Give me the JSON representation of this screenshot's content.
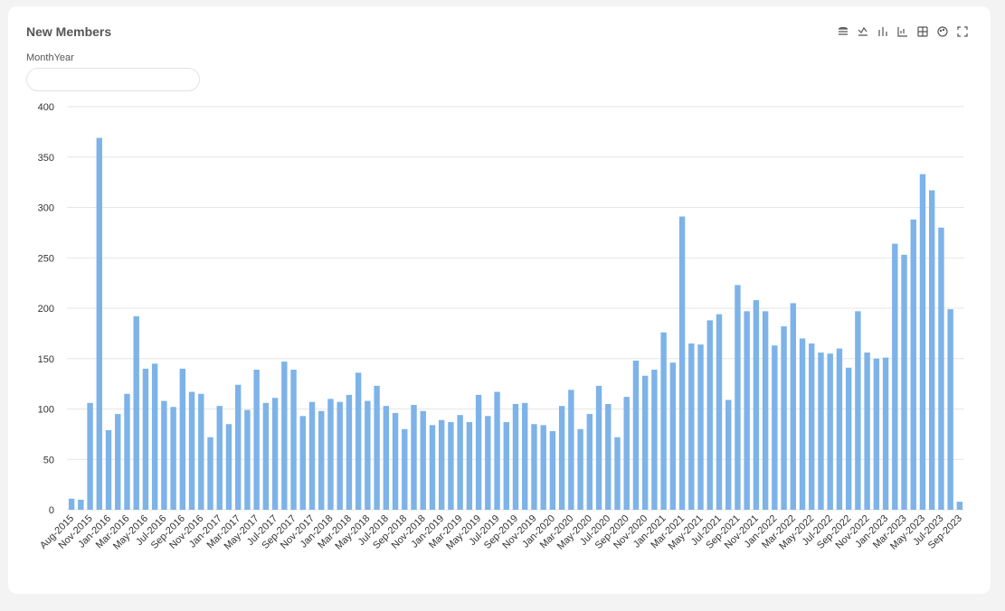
{
  "filter_label": "MonthYear",
  "chart_data": {
    "type": "bar",
    "title": "New Members",
    "color": "#7db3e8",
    "grid": true,
    "ylim": [
      0,
      400
    ],
    "yticks": [
      0,
      50,
      100,
      150,
      200,
      250,
      300,
      350,
      400
    ],
    "categories": [
      "Aug-2015",
      null,
      "Nov-2015",
      null,
      "Jan-2016",
      null,
      "Mar-2016",
      null,
      "May-2016",
      null,
      "Jul-2016",
      null,
      "Sep-2016",
      null,
      "Nov-2016",
      null,
      "Jan-2017",
      null,
      "Mar-2017",
      null,
      "May-2017",
      null,
      "Jul-2017",
      null,
      "Sep-2017",
      null,
      "Nov-2017",
      null,
      "Jan-2018",
      null,
      "Mar-2018",
      null,
      "May-2018",
      null,
      "Jul-2018",
      null,
      "Sep-2018",
      null,
      "Nov-2018",
      null,
      "Jan-2019",
      null,
      "Mar-2019",
      null,
      "May-2019",
      null,
      "Jul-2019",
      null,
      "Sep-2019",
      null,
      "Nov-2019",
      null,
      "Jan-2020",
      null,
      "Mar-2020",
      null,
      "May-2020",
      null,
      "Jul-2020",
      null,
      "Sep-2020",
      null,
      "Nov-2020",
      null,
      "Jan-2021",
      null,
      "Mar-2021",
      null,
      "May-2021",
      null,
      "Jul-2021",
      null,
      "Sep-2021",
      null,
      "Nov-2021",
      null,
      "Jan-2022",
      null,
      "Mar-2022",
      null,
      "May-2022",
      null,
      "Jul-2022",
      null,
      "Sep-2022",
      null,
      "Nov-2022",
      null,
      "Jan-2023",
      null,
      "Mar-2023",
      null,
      "May-2023",
      null,
      "Jul-2023",
      null,
      "Sep-2023"
    ],
    "values": [
      11,
      10,
      106,
      369,
      79,
      95,
      115,
      192,
      140,
      145,
      108,
      102,
      140,
      117,
      115,
      72,
      103,
      85,
      124,
      99,
      139,
      106,
      111,
      147,
      139,
      93,
      107,
      98,
      110,
      107,
      114,
      136,
      108,
      123,
      103,
      96,
      80,
      104,
      98,
      84,
      89,
      87,
      94,
      87,
      114,
      93,
      117,
      87,
      105,
      106,
      85,
      84,
      78,
      103,
      119,
      80,
      95,
      123,
      105,
      72,
      112,
      148,
      133,
      139,
      176,
      146,
      291,
      165,
      164,
      188,
      194,
      109,
      223,
      197,
      208,
      197,
      163,
      182,
      205,
      170,
      165,
      156,
      155,
      160,
      141,
      197,
      156,
      150,
      151,
      264,
      253,
      288,
      333,
      317,
      280,
      199,
      8
    ]
  }
}
